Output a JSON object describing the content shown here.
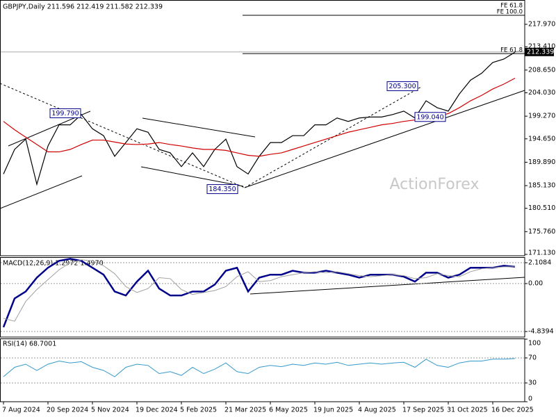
{
  "chart_data": [
    {
      "type": "line",
      "title": "GBPJPY,Daily 211.596 212.419 211.582 212.339",
      "watermark": "ActionForex",
      "categories": [
        "7 Aug 2024",
        null,
        null,
        null,
        "20 Sep 2024",
        null,
        null,
        null,
        "5 Nov 2024",
        null,
        null,
        null,
        "19 Dec 2024",
        null,
        null,
        null,
        "5 Feb 2025",
        null,
        null,
        null,
        "21 Mar 2025",
        null,
        null,
        null,
        "6 May 2025",
        null,
        null,
        null,
        "19 Jun 2025",
        null,
        null,
        null,
        "4 Aug 2025",
        null,
        null,
        null,
        "17 Sep 2025",
        null,
        null,
        null,
        "31 Oct 2025",
        null,
        null,
        null,
        "16 Dec 2025",
        null,
        null
      ],
      "series": [
        {
          "color": "#000000",
          "values": [
            187.5,
            192.5,
            194.6,
            185.4,
            193.2,
            197.5,
            197.5,
            199.6,
            196.7,
            195.3,
            191.1,
            193.9,
            196.7,
            196,
            192.5,
            191.8,
            189,
            191.8,
            189,
            192.5,
            194.6,
            189,
            187.5,
            191.1,
            193.9,
            193.9,
            195.3,
            195.3,
            197.5,
            197.5,
            198.9,
            198.2,
            198.9,
            199.1,
            199.1,
            199.6,
            200.3,
            198.9,
            202.4,
            201,
            200.3,
            203.8,
            206.6,
            208,
            210.2,
            210.9,
            212.3
          ]
        },
        {
          "color": "#d00000",
          "values": [
            198.2,
            196.5,
            195,
            193.5,
            192,
            192,
            192.5,
            193.5,
            194.4,
            194.4,
            194,
            193.6,
            193.5,
            193.6,
            193.9,
            193.5,
            193.2,
            192.8,
            192.5,
            192.5,
            192.3,
            191.8,
            191.3,
            191.1,
            191.5,
            191.8,
            192.5,
            193.2,
            193.9,
            194.6,
            195.3,
            196,
            196.5,
            197,
            197.5,
            197.8,
            198.2,
            198.5,
            198.8,
            199.2,
            199.8,
            201,
            202.4,
            203.5,
            204.8,
            205.8,
            207
          ]
        }
      ],
      "ylim": [
        170.85,
        222.92
      ],
      "yticks": [
        {
          "value": 217.97,
          "label": "217.970"
        },
        {
          "value": 213.41,
          "label": "213.410"
        },
        {
          "value": 208.65,
          "label": "208.650"
        },
        {
          "value": 204.03,
          "label": "204.030"
        },
        {
          "value": 199.27,
          "label": "199.270"
        },
        {
          "value": 194.65,
          "label": "194.650"
        },
        {
          "value": 189.89,
          "label": "189.890"
        },
        {
          "value": 185.13,
          "label": "185.130"
        },
        {
          "value": 180.51,
          "label": "180.510"
        },
        {
          "value": 175.76,
          "label": "175.760"
        },
        {
          "value": 171.13,
          "label": "171.130"
        }
      ],
      "annotations": [
        {
          "value": 199.79,
          "label": "199.790"
        },
        {
          "value": 184.35,
          "label": "184.350"
        },
        {
          "value": 205.3,
          "label": "205.300"
        },
        {
          "value": 199.04,
          "label": "199.040"
        }
      ],
      "fe_top_label": "FE 61.8",
      "fe_levels": [
        {
          "value": 219.8,
          "label": "FE 100.0"
        },
        {
          "value": 212.0,
          "label": "FE 61.8"
        }
      ],
      "last_price": {
        "value": 212.339,
        "label": "212.339"
      }
    },
    {
      "type": "line",
      "title": "MACD(12,26,9) 1.2972 1.4970",
      "series": [
        {
          "color": "#00008b",
          "width": 2.5,
          "values": [
            -4.4,
            -1.5,
            -0.8,
            0.6,
            1.6,
            2.3,
            2.5,
            2.3,
            1.6,
            0.9,
            -0.8,
            -1.2,
            0.2,
            1.3,
            -0.5,
            -1.2,
            -1.2,
            -0.8,
            -0.8,
            -0.1,
            1.3,
            1.6,
            -0.8,
            0.6,
            0.9,
            0.9,
            1.3,
            1.1,
            1.1,
            1.3,
            1.1,
            0.9,
            0.6,
            0.9,
            0.9,
            0.9,
            0.7,
            0.2,
            1.1,
            1.1,
            0.6,
            0.9,
            1.6,
            1.6,
            1.6,
            1.8,
            1.7
          ]
        },
        {
          "color": "#a0a0a0",
          "width": 1,
          "values": [
            -3.5,
            -3.8,
            -1.8,
            -0.6,
            0.4,
            1.4,
            2.1,
            2.4,
            2.3,
            1.8,
            1.0,
            -0.3,
            -0.9,
            -0.5,
            0.6,
            0.5,
            -0.6,
            -1.1,
            -0.9,
            -0.7,
            -0.3,
            0.7,
            1.2,
            0.2,
            0.3,
            0.7,
            0.9,
            1.1,
            1.2,
            1.1,
            1.2,
            1.0,
            0.8,
            0.7,
            0.8,
            0.9,
            0.8,
            0.5,
            0.6,
            1.0,
            0.8,
            0.7,
            1.2,
            1.5,
            1.6,
            1.7,
            1.7
          ]
        }
      ],
      "ylim": [
        -5.4,
        2.67
      ],
      "yticks": [
        2.1084,
        {
          "value": 0,
          "label": "0.00"
        },
        -4.8394
      ]
    },
    {
      "type": "line",
      "title": "RSI(14) 68.7001",
      "series": [
        {
          "color": "#3399cc",
          "width": 1,
          "values": [
            40,
            55,
            60,
            50,
            60,
            65,
            62,
            64,
            55,
            50,
            40,
            55,
            60,
            58,
            45,
            48,
            42,
            55,
            45,
            52,
            62,
            48,
            45,
            55,
            58,
            56,
            60,
            58,
            62,
            60,
            63,
            58,
            60,
            62,
            60,
            62,
            63,
            55,
            68,
            58,
            55,
            62,
            65,
            65,
            68,
            68,
            69
          ]
        }
      ],
      "ylim": [
        0,
        100
      ],
      "yticks": [
        100,
        70,
        30,
        0
      ]
    }
  ]
}
